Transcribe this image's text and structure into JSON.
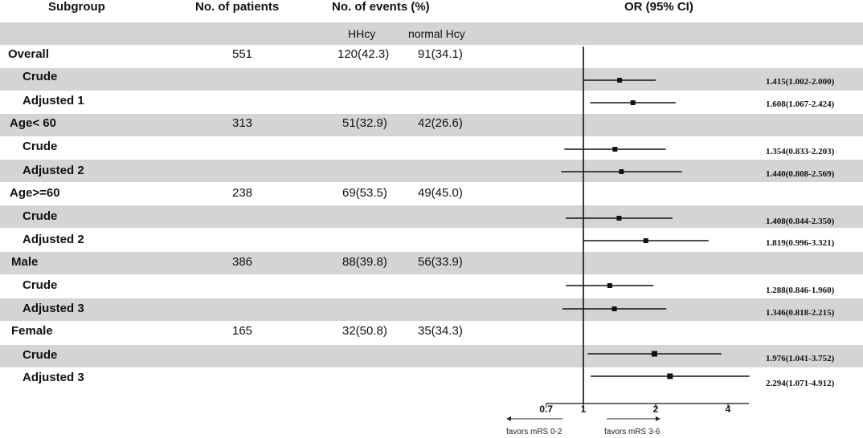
{
  "headers": {
    "subgroup": "Subgroup",
    "patients": "No. of patients",
    "events": "No. of events (%)",
    "or": "OR (95% CI)",
    "hhcy": "HHcy",
    "normal": "normal Hcy"
  },
  "chart_data": {
    "type": "forest",
    "title": "OR (95% CI)",
    "x_scale": "log2",
    "reference": 1,
    "xlim": [
      0.58,
      5.0
    ],
    "ticks": [
      "0.7",
      "1",
      "2",
      "4"
    ],
    "favors_left": "favors mRS 0-2",
    "favors_right": "favors mRS  3-6",
    "rows": [
      {
        "label": "Overall",
        "group": true,
        "patients": "551",
        "hhcy": "120(42.3)",
        "normal": "91(34.1)"
      },
      {
        "label": "Crude",
        "group": false,
        "or": 1.415,
        "lo": 1.002,
        "hi": 2.0,
        "ci_text": "1.415(1.002-2.000)"
      },
      {
        "label": "Adjusted 1",
        "group": false,
        "or": 1.608,
        "lo": 1.067,
        "hi": 2.424,
        "ci_text": "1.608(1.067-2.424)"
      },
      {
        "label": "Age< 60",
        "group": true,
        "patients": "313",
        "hhcy": "51(32.9)",
        "normal": "42(26.6)"
      },
      {
        "label": "Crude",
        "group": false,
        "or": 1.354,
        "lo": 0.833,
        "hi": 2.203,
        "ci_text": "1.354(0.833-2.203)"
      },
      {
        "label": "Adjusted 2",
        "group": false,
        "or": 1.44,
        "lo": 0.808,
        "hi": 2.569,
        "ci_text": "1.440(0.808-2.569)"
      },
      {
        "label": "Age>=60",
        "group": true,
        "patients": "238",
        "hhcy": "69(53.5)",
        "normal": "49(45.0)"
      },
      {
        "label": "Crude",
        "group": false,
        "or": 1.408,
        "lo": 0.844,
        "hi": 2.35,
        "ci_text": "1.408(0.844-2.350)"
      },
      {
        "label": "Adjusted 2",
        "group": false,
        "or": 1.819,
        "lo": 0.996,
        "hi": 3.321,
        "ci_text": "1.819(0.996-3.321)"
      },
      {
        "label": "Male",
        "group": true,
        "patients": "386",
        "hhcy": "88(39.8)",
        "normal": "56(33.9)"
      },
      {
        "label": "Crude",
        "group": false,
        "or": 1.288,
        "lo": 0.846,
        "hi": 1.96,
        "ci_text": "1.288(0.846-1.960)"
      },
      {
        "label": "Adjusted 3",
        "group": false,
        "or": 1.346,
        "lo": 0.818,
        "hi": 2.215,
        "ci_text": "1.346(0.818-2.215)"
      },
      {
        "label": "Female",
        "group": true,
        "patients": "165",
        "hhcy": "32(50.8)",
        "normal": "35(34.3)"
      },
      {
        "label": "Crude",
        "group": false,
        "or": 1.976,
        "lo": 1.041,
        "hi": 3.752,
        "ci_text": "1.976(1.041-3.752)"
      },
      {
        "label": "Adjusted 3",
        "group": false,
        "or": 2.294,
        "lo": 1.071,
        "hi": 4.912,
        "ci_text": "2.294(1.071-4.912)"
      }
    ]
  }
}
